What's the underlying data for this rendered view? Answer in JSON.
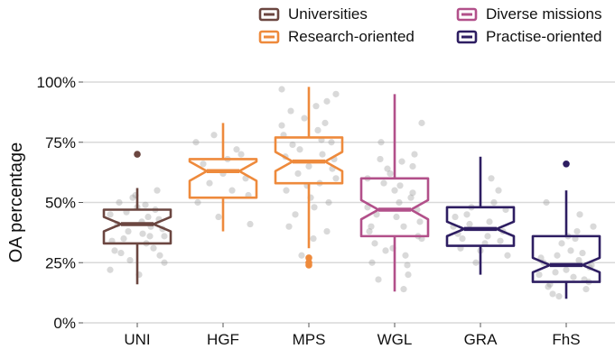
{
  "chart_data": {
    "type": "box",
    "ylabel": "OA percentage",
    "xlabel": "",
    "ylim": [
      0,
      100
    ],
    "yticks": [
      0,
      25,
      50,
      75,
      100
    ],
    "ytick_labels": [
      "0%",
      "25%",
      "50%",
      "75%",
      "100%"
    ],
    "grid": true,
    "legend": {
      "placement": "top-right",
      "entries": [
        {
          "label": "Universities",
          "color": "#6b4640"
        },
        {
          "label": "Diverse missions",
          "color": "#b2508a"
        },
        {
          "label": "Research-oriented",
          "color": "#ee8a3c"
        },
        {
          "label": "Practise-oriented",
          "color": "#2e1e62"
        }
      ]
    },
    "categories": [
      "UNI",
      "HGF",
      "MPS",
      "WGL",
      "GRA",
      "FhS"
    ],
    "boxes": [
      {
        "category": "UNI",
        "group": "Universities",
        "color": "#6b4640",
        "whisker_low": 16,
        "q1": 33,
        "median": 41,
        "q3": 47,
        "whisker_high": 56,
        "notch": [
          38,
          44
        ],
        "outliers": [
          70
        ],
        "points": [
          [
            -0.3,
            45
          ],
          [
            -0.2,
            50
          ],
          [
            -0.1,
            38
          ],
          [
            0.05,
            42
          ],
          [
            0.2,
            47
          ],
          [
            0.3,
            36
          ],
          [
            -0.25,
            30
          ],
          [
            0.1,
            33
          ],
          [
            -0.05,
            52
          ],
          [
            0.15,
            40
          ],
          [
            0.25,
            28
          ],
          [
            -0.15,
            35
          ],
          [
            0.0,
            48
          ],
          [
            0.22,
            55
          ],
          [
            -0.3,
            22
          ],
          [
            0.12,
            44
          ],
          [
            -0.08,
            26
          ],
          [
            0.28,
            39
          ],
          [
            -0.22,
            41
          ],
          [
            0.06,
            37
          ],
          [
            0.18,
            31
          ],
          [
            -0.12,
            46
          ],
          [
            0.02,
            20
          ],
          [
            0.24,
            43
          ],
          [
            -0.28,
            34
          ],
          [
            0.09,
            49
          ],
          [
            -0.18,
            29
          ],
          [
            0.3,
            25
          ],
          [
            -0.02,
            53
          ],
          [
            0.14,
            36
          ]
        ]
      },
      {
        "category": "HGF",
        "group": "Research-oriented",
        "color": "#ee8a3c",
        "whisker_low": 38,
        "q1": 52,
        "median": 63,
        "q3": 68,
        "whisker_high": 83,
        "notch": [
          59,
          67
        ],
        "outliers": [],
        "points": [
          [
            -0.3,
            75
          ],
          [
            -0.15,
            58
          ],
          [
            0.0,
            62
          ],
          [
            0.2,
            70
          ],
          [
            0.3,
            41
          ],
          [
            -0.22,
            66
          ],
          [
            0.1,
            55
          ],
          [
            -0.05,
            44
          ],
          [
            0.25,
            60
          ],
          [
            0.15,
            72
          ],
          [
            -0.28,
            50
          ],
          [
            0.05,
            68
          ],
          [
            -0.1,
            78
          ],
          [
            0.28,
            53
          ]
        ]
      },
      {
        "category": "MPS",
        "group": "Research-oriented",
        "color": "#ee8a3c",
        "whisker_low": 31,
        "q1": 58,
        "median": 67,
        "q3": 77,
        "whisker_high": 98,
        "notch": [
          63,
          71
        ],
        "outliers": [
          24,
          25,
          27
        ],
        "points": [
          [
            -0.3,
            97
          ],
          [
            -0.2,
            88
          ],
          [
            -0.1,
            72
          ],
          [
            0.0,
            65
          ],
          [
            0.1,
            80
          ],
          [
            0.2,
            92
          ],
          [
            0.3,
            60
          ],
          [
            -0.25,
            55
          ],
          [
            -0.15,
            45
          ],
          [
            0.05,
            35
          ],
          [
            0.15,
            70
          ],
          [
            0.25,
            75
          ],
          [
            -0.05,
            85
          ],
          [
            -0.28,
            78
          ],
          [
            0.22,
            50
          ],
          [
            0.12,
            58
          ],
          [
            -0.12,
            62
          ],
          [
            0.28,
            68
          ],
          [
            -0.22,
            40
          ],
          [
            0.08,
            90
          ],
          [
            0.18,
            83
          ],
          [
            -0.18,
            74
          ],
          [
            0.02,
            52
          ],
          [
            0.26,
            64
          ],
          [
            -0.08,
            28
          ],
          [
            0.14,
            76
          ],
          [
            -0.3,
            82
          ],
          [
            0.06,
            48
          ],
          [
            -0.26,
            69
          ],
          [
            0.3,
            95
          ],
          [
            -0.02,
            57
          ],
          [
            0.2,
            38
          ]
        ]
      },
      {
        "category": "WGL",
        "group": "Diverse missions",
        "color": "#b2508a",
        "whisker_low": 13,
        "q1": 36,
        "median": 47,
        "q3": 60,
        "whisker_high": 95,
        "notch": [
          43,
          51
        ],
        "outliers": [],
        "points": [
          [
            -0.3,
            60
          ],
          [
            -0.2,
            45
          ],
          [
            -0.1,
            30
          ],
          [
            0.0,
            55
          ],
          [
            0.1,
            40
          ],
          [
            0.2,
            65
          ],
          [
            0.3,
            35
          ],
          [
            -0.25,
            25
          ],
          [
            -0.15,
            75
          ],
          [
            0.05,
            50
          ],
          [
            0.15,
            20
          ],
          [
            0.25,
            47
          ],
          [
            -0.05,
            62
          ],
          [
            -0.28,
            38
          ],
          [
            0.22,
            70
          ],
          [
            0.12,
            28
          ],
          [
            -0.12,
            58
          ],
          [
            0.28,
            42
          ],
          [
            -0.22,
            33
          ],
          [
            0.08,
            67
          ],
          [
            0.18,
            52
          ],
          [
            -0.18,
            18
          ],
          [
            0.02,
            44
          ],
          [
            0.26,
            36
          ],
          [
            -0.08,
            64
          ],
          [
            0.14,
            24
          ],
          [
            -0.3,
            48
          ],
          [
            0.06,
            57
          ],
          [
            -0.26,
            40
          ],
          [
            0.3,
            83
          ],
          [
            -0.02,
            31
          ],
          [
            0.2,
            54
          ],
          [
            -0.16,
            68
          ],
          [
            0.1,
            14
          ]
        ]
      },
      {
        "category": "GRA",
        "group": "Practise-oriented",
        "color": "#2e1e62",
        "whisker_low": 20,
        "q1": 32,
        "median": 39,
        "q3": 48,
        "whisker_high": 69,
        "notch": [
          36,
          42
        ],
        "outliers": [],
        "points": [
          [
            -0.3,
            40
          ],
          [
            -0.2,
            35
          ],
          [
            -0.1,
            48
          ],
          [
            0.0,
            30
          ],
          [
            0.1,
            42
          ],
          [
            0.2,
            55
          ],
          [
            0.3,
            28
          ],
          [
            -0.25,
            37
          ],
          [
            -0.15,
            45
          ],
          [
            0.05,
            33
          ],
          [
            0.15,
            50
          ],
          [
            0.25,
            38
          ],
          [
            -0.05,
            25
          ],
          [
            -0.28,
            44
          ],
          [
            0.22,
            34
          ],
          [
            0.12,
            60
          ],
          [
            -0.12,
            41
          ],
          [
            0.28,
            47
          ],
          [
            -0.22,
            31
          ],
          [
            0.08,
            36
          ]
        ]
      },
      {
        "category": "FhS",
        "group": "Practise-oriented",
        "color": "#2e1e62",
        "whisker_low": 10,
        "q1": 17,
        "median": 24,
        "q3": 36,
        "whisker_high": 55,
        "notch": [
          21,
          27
        ],
        "outliers": [
          66
        ],
        "points": [
          [
            -0.3,
            20
          ],
          [
            -0.2,
            15
          ],
          [
            -0.1,
            28
          ],
          [
            0.0,
            22
          ],
          [
            0.1,
            35
          ],
          [
            0.2,
            18
          ],
          [
            0.3,
            40
          ],
          [
            -0.25,
            25
          ],
          [
            -0.15,
            12
          ],
          [
            0.05,
            30
          ],
          [
            0.15,
            45
          ],
          [
            0.25,
            17
          ],
          [
            -0.05,
            33
          ],
          [
            -0.28,
            27
          ],
          [
            0.22,
            14
          ],
          [
            0.12,
            38
          ],
          [
            -0.12,
            21
          ],
          [
            0.28,
            24
          ],
          [
            -0.22,
            50
          ],
          [
            0.08,
            19
          ],
          [
            0.18,
            29
          ],
          [
            -0.18,
            16
          ],
          [
            0.02,
            36
          ],
          [
            0.26,
            23
          ],
          [
            -0.08,
            11
          ],
          [
            0.14,
            26
          ]
        ]
      }
    ]
  }
}
